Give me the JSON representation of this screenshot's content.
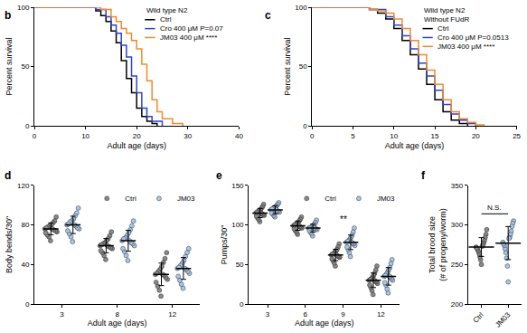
{
  "chart_data": [
    {
      "panel": "b",
      "type": "line",
      "line_style": "step",
      "x_label": "Adult age (days)",
      "y_label": "Percent survival",
      "xlim": [
        0,
        40
      ],
      "xticks": [
        0,
        10,
        20,
        30,
        40
      ],
      "ylim": [
        0,
        100
      ],
      "yticks": [
        0,
        50,
        100
      ],
      "legend_title": [
        "Wild type N2"
      ],
      "series": [
        {
          "name": "Ctrl",
          "color": "#000000",
          "x": [
            0,
            10,
            12,
            13,
            14,
            15,
            16,
            17,
            18,
            19,
            20,
            21,
            22,
            23,
            24
          ],
          "values": [
            100,
            100,
            97,
            93,
            88,
            80,
            70,
            55,
            40,
            28,
            15,
            8,
            4,
            2,
            0
          ]
        },
        {
          "name": "Cro 400 μM P=0.07",
          "color": "#2f45c8",
          "x": [
            0,
            12,
            14,
            15,
            16,
            17,
            18,
            19,
            20,
            21,
            22,
            23,
            25
          ],
          "values": [
            100,
            98,
            92,
            85,
            78,
            68,
            58,
            42,
            28,
            15,
            8,
            4,
            0
          ]
        },
        {
          "name": "JM03 400 μM ****",
          "color": "#f28a2e",
          "x": [
            0,
            13,
            15,
            16,
            17,
            18,
            19,
            20,
            21,
            22,
            23,
            24,
            25,
            27,
            29
          ],
          "values": [
            100,
            98,
            92,
            88,
            82,
            78,
            72,
            65,
            52,
            38,
            22,
            12,
            6,
            2,
            0
          ]
        }
      ]
    },
    {
      "panel": "c",
      "type": "line",
      "line_style": "step",
      "x_label": "Adult age (days)",
      "y_label": "Percent survival",
      "xlim": [
        0,
        25
      ],
      "xticks": [
        0,
        5,
        10,
        15,
        20,
        25
      ],
      "ylim": [
        0,
        100
      ],
      "yticks": [
        0,
        50,
        100
      ],
      "legend_title": [
        "Wild type N2",
        "Without FUdR"
      ],
      "series": [
        {
          "name": "Ctrl",
          "color": "#000000",
          "x": [
            0,
            7,
            8,
            9,
            10,
            11,
            12,
            13,
            14,
            15,
            16,
            17,
            18,
            19
          ],
          "values": [
            100,
            98,
            95,
            90,
            82,
            72,
            60,
            48,
            35,
            22,
            12,
            5,
            2,
            0
          ]
        },
        {
          "name": "Cro 400 μM P=0.0513",
          "color": "#2f45c8",
          "x": [
            0,
            7,
            9,
            10,
            11,
            12,
            13,
            14,
            15,
            16,
            17,
            18,
            19,
            20
          ],
          "values": [
            100,
            98,
            92,
            85,
            76,
            65,
            53,
            42,
            30,
            18,
            10,
            5,
            2,
            0
          ]
        },
        {
          "name": "JM03 400 μM ****",
          "color": "#f28a2e",
          "x": [
            0,
            7,
            8,
            9,
            10,
            11,
            12,
            13,
            14,
            15,
            16,
            17,
            18,
            19,
            20,
            21
          ],
          "values": [
            100,
            98,
            97,
            95,
            90,
            82,
            72,
            60,
            47,
            35,
            22,
            12,
            6,
            3,
            1,
            0
          ]
        }
      ]
    },
    {
      "panel": "d",
      "type": "strip",
      "x_label": "Adult age (days)",
      "y_label": "Body bends/30\"",
      "ylim": [
        0,
        120
      ],
      "yticks": [
        0,
        40,
        80,
        120
      ],
      "categories": [
        "3",
        "8",
        "12"
      ],
      "series": [
        {
          "name": "Ctrl",
          "color": "#8a8a8a",
          "values": [
            [
              76,
              64,
              88,
              68,
              84,
              70,
              82,
              72,
              80,
              73,
              79,
              74,
              78,
              75,
              77,
              76
            ],
            [
              59,
              45,
              73,
              49,
              69,
              52,
              66,
              54,
              64,
              56,
              62,
              57,
              61,
              58,
              60,
              59
            ],
            [
              30,
              8,
              52,
              14,
              46,
              18,
              42,
              22,
              38,
              25,
              35,
              27,
              33,
              29,
              31,
              30
            ]
          ],
          "mean": [
            76,
            59,
            30
          ],
          "sd": [
            6.0,
            7.2,
            11.4
          ]
        },
        {
          "name": "JM03",
          "color": "#a8c8ea",
          "values": [
            [
              80,
              63,
              97,
              68,
              92,
              71,
              89,
              74,
              86,
              76,
              84,
              77,
              83,
              79,
              81,
              80
            ],
            [
              64,
              44,
              84,
              49,
              79,
              53,
              75,
              56,
              72,
              59,
              69,
              61,
              67,
              62,
              66,
              64
            ],
            [
              36,
              16,
              56,
              20,
              52,
              24,
              48,
              28,
              44,
              31,
              41,
              33,
              39,
              35,
              37,
              36
            ]
          ],
          "mean": [
            80,
            64,
            36
          ],
          "sd": [
            8.8,
            10.6,
            11.0
          ]
        }
      ]
    },
    {
      "panel": "e",
      "type": "strip",
      "x_label": "Adult age (days)",
      "y_label": "Pumps/30\"",
      "ylim": [
        0,
        150
      ],
      "yticks": [
        0,
        50,
        100,
        150
      ],
      "categories": [
        "3",
        "6",
        "9",
        "12"
      ],
      "annotations": [
        {
          "text": "**",
          "category": "9"
        }
      ],
      "series": [
        {
          "name": "Ctrl",
          "color": "#8a8a8a",
          "values": [
            [
              115,
              104,
              126,
              107,
              123,
              109,
              121,
              111,
              119,
              112,
              118,
              113,
              117,
              114,
              116,
              115
            ],
            [
              99,
              88,
              110,
              91,
              107,
              93,
              105,
              95,
              103,
              96,
              102,
              97,
              101,
              98,
              100,
              99
            ],
            [
              62,
              48,
              76,
              52,
              72,
              55,
              69,
              57,
              67,
              59,
              65,
              60,
              64,
              61,
              63,
              62
            ],
            [
              30,
              12,
              48,
              17,
              43,
              21,
              39,
              24,
              36,
              26,
              34,
              28,
              32,
              29,
              31,
              30
            ]
          ],
          "mean": [
            115,
            99,
            62,
            30
          ],
          "sd": [
            5.8,
            5.8,
            7.2,
            9.2
          ]
        },
        {
          "name": "JM03",
          "color": "#a8c8ea",
          "values": [
            [
              119,
              110,
              128,
              112,
              126,
              114,
              124,
              115,
              123,
              116,
              122,
              117,
              121,
              118,
              120,
              119
            ],
            [
              96,
              86,
              106,
              89,
              103,
              91,
              101,
              93,
              99,
              94,
              98,
              95,
              97,
              96,
              96,
              96
            ],
            [
              78,
              60,
              96,
              65,
              91,
              69,
              87,
              72,
              84,
              74,
              82,
              76,
              80,
              77,
              79,
              78
            ],
            [
              35,
              14,
              56,
              19,
              51,
              24,
              46,
              27,
              43,
              30,
              40,
              32,
              38,
              34,
              36,
              35
            ]
          ],
          "mean": [
            119,
            96,
            78,
            35
          ],
          "sd": [
            5.0,
            5.0,
            9.2,
            11.1
          ]
        }
      ]
    },
    {
      "panel": "f",
      "type": "strip",
      "y_label": "Total brood size\n(# of progeny/worm)",
      "ylim": [
        200,
        350
      ],
      "yticks": [
        200,
        250,
        300,
        350
      ],
      "categories": [
        "Ctrl",
        "JM03"
      ],
      "colors": [
        "#8a8a8a",
        "#a8c8ea"
      ],
      "values": [
        [
          272,
          250,
          294,
          256,
          288,
          260,
          284,
          264,
          280,
          267,
          277,
          269,
          275,
          271,
          273
        ],
        [
          278,
          228,
          305,
          248,
          302,
          258,
          298,
          265,
          292,
          270,
          288,
          274,
          284,
          276,
          283
        ]
      ],
      "mean": [
        272,
        277
      ],
      "sd": [
        11.9,
        20.9
      ],
      "comparison": {
        "text": "N.S.",
        "categories": [
          "Ctrl",
          "JM03"
        ]
      }
    }
  ]
}
